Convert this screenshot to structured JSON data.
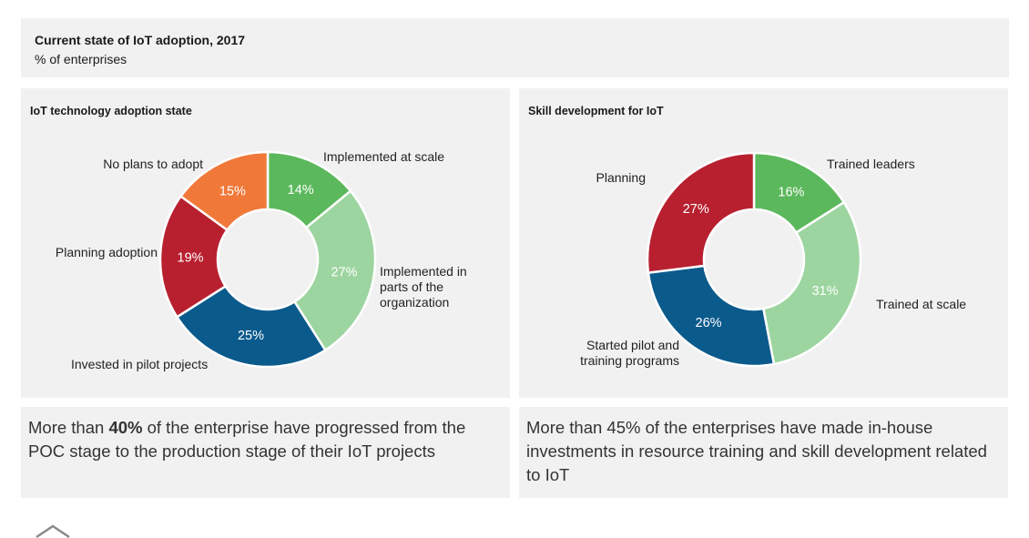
{
  "header": {
    "title": "Current state of IoT adoption, 2017",
    "subtitle": "% of enterprises"
  },
  "notes": {
    "left": {
      "pre": "More than ",
      "highlight": "40%",
      "post": " of the enterprise have progressed from the POC stage to the production stage of their IoT projects"
    },
    "right": {
      "text": "More than 45% of the enterprises have made in-house investments in resource training and skill development related to IoT"
    }
  },
  "colors": {
    "panel_bg": "#f1f1f1",
    "dark_green": "#5cb85c",
    "light_green": "#9dd5a0",
    "blue": "#0b5a8c",
    "red": "#b8202f",
    "orange": "#f0793a"
  },
  "chart_data": [
    {
      "type": "pie",
      "title": "IoT technology adoption state",
      "categories": [
        "Implemented at scale",
        "Implemented in parts of the organization",
        "Invested in pilot projects",
        "Planning adoption",
        "No plans to adopt"
      ],
      "values": [
        14,
        27,
        25,
        19,
        15
      ],
      "value_labels": [
        "14%",
        "27%",
        "25%",
        "19%",
        "15%"
      ],
      "colors": [
        "#5cb85c",
        "#9dd5a0",
        "#0b5a8c",
        "#b8202f",
        "#f0793a"
      ],
      "label_lines": [
        [
          "Implemented at scale"
        ],
        [
          "Implemented in",
          "parts of the",
          "organization"
        ],
        [
          "Invested in pilot projects"
        ],
        [
          "Planning adoption"
        ],
        [
          "No plans to adopt"
        ]
      ]
    },
    {
      "type": "pie",
      "title": "Skill development for IoT",
      "categories": [
        "Trained leaders",
        "Trained at scale",
        "Started pilot and training programs",
        "Planning"
      ],
      "values": [
        16,
        31,
        26,
        27
      ],
      "value_labels": [
        "16%",
        "31%",
        "26%",
        "27%"
      ],
      "colors": [
        "#5cb85c",
        "#9dd5a0",
        "#0b5a8c",
        "#b8202f"
      ],
      "label_lines": [
        [
          "Trained leaders"
        ],
        [
          "Trained at scale"
        ],
        [
          "Started pilot and",
          "training programs"
        ],
        [
          "Planning"
        ]
      ]
    }
  ]
}
